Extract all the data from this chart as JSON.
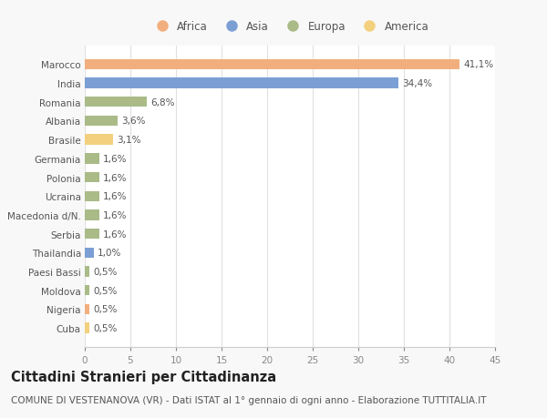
{
  "countries": [
    "Marocco",
    "India",
    "Romania",
    "Albania",
    "Brasile",
    "Germania",
    "Polonia",
    "Ucraina",
    "Macedonia d/N.",
    "Serbia",
    "Thailandia",
    "Paesi Bassi",
    "Moldova",
    "Nigeria",
    "Cuba"
  ],
  "values": [
    41.1,
    34.4,
    6.8,
    3.6,
    3.1,
    1.6,
    1.6,
    1.6,
    1.6,
    1.6,
    1.0,
    0.5,
    0.5,
    0.5,
    0.5
  ],
  "labels": [
    "41,1%",
    "34,4%",
    "6,8%",
    "3,6%",
    "3,1%",
    "1,6%",
    "1,6%",
    "1,6%",
    "1,6%",
    "1,6%",
    "1,0%",
    "0,5%",
    "0,5%",
    "0,5%",
    "0,5%"
  ],
  "continents": [
    "Africa",
    "Asia",
    "Europa",
    "Europa",
    "America",
    "Europa",
    "Europa",
    "Europa",
    "Europa",
    "Europa",
    "Asia",
    "Europa",
    "Europa",
    "Africa",
    "America"
  ],
  "colors": {
    "Africa": "#F2AF7E",
    "Asia": "#7B9FD4",
    "Europa": "#AABB88",
    "America": "#F2D07E"
  },
  "legend_order": [
    "Africa",
    "Asia",
    "Europa",
    "America"
  ],
  "title": "Cittadini Stranieri per Cittadinanza",
  "subtitle": "COMUNE DI VESTENANOVA (VR) - Dati ISTAT al 1° gennaio di ogni anno - Elaborazione TUTTITALIA.IT",
  "xlim": [
    0,
    45
  ],
  "xticks": [
    0,
    5,
    10,
    15,
    20,
    25,
    30,
    35,
    40,
    45
  ],
  "background_color": "#f8f8f8",
  "plot_bg_color": "#ffffff",
  "grid_color": "#e0e0e0",
  "label_fontsize": 7.5,
  "tick_fontsize": 7.5,
  "title_fontsize": 10.5,
  "subtitle_fontsize": 7.5,
  "legend_fontsize": 8.5
}
